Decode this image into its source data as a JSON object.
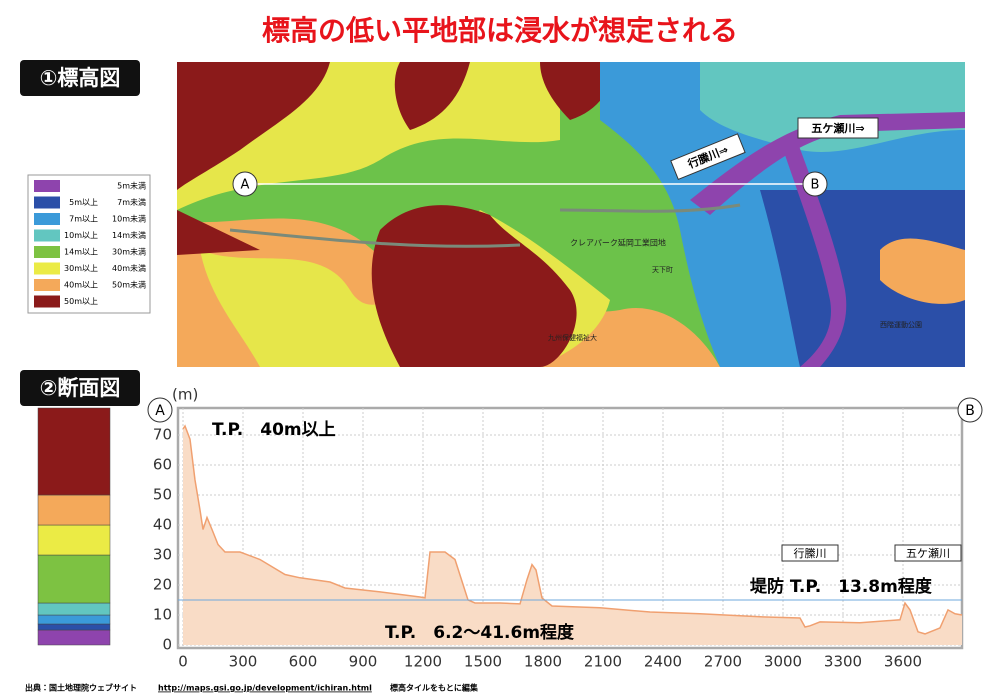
{
  "title": "標高の低い平地部は浸水が想定される",
  "sections": {
    "map": "①標高図",
    "profile": "②断面図"
  },
  "map": {
    "point_a": "A",
    "point_b": "B",
    "river_1": "行縢川⇒",
    "river_2": "五ケ瀬川⇒",
    "places": [
      "クレアパーク延岡工業団地",
      "九州保健福祉大",
      "天下町",
      "西階運動公園"
    ]
  },
  "legend": [
    {
      "color": "#8e44ad",
      "to": "5m未満",
      "max": 5
    },
    {
      "color": "#2b4fa8",
      "from": "5m以上",
      "to": "7m未満",
      "min": 5,
      "max": 7
    },
    {
      "color": "#3b9ad9",
      "from": "7m以上",
      "to": "10m未満",
      "min": 7,
      "max": 10
    },
    {
      "color": "#62c6c0",
      "from": "10m以上",
      "to": "14m未満",
      "min": 10,
      "max": 14
    },
    {
      "color": "#7dc242",
      "from": "14m以上",
      "to": "30m未満",
      "min": 14,
      "max": 30
    },
    {
      "color": "#ebeb45",
      "from": "30m以上",
      "to": "40m未満",
      "min": 30,
      "max": 40
    },
    {
      "color": "#f4a95a",
      "from": "40m以上",
      "to": "50m未満",
      "min": 40,
      "max": 50
    },
    {
      "color": "#8b1a1a",
      "from": "50m以上",
      "min": 50
    }
  ],
  "chart_data": {
    "type": "area",
    "y_unit_label": "(m)",
    "start_label": "A",
    "end_label": "B",
    "color": "#f9dcc6",
    "line_color": "#f0a070",
    "x": [
      0,
      10,
      35,
      60,
      85,
      100,
      120,
      145,
      175,
      210,
      285,
      385,
      510,
      585,
      735,
      810,
      985,
      1185,
      1210,
      1235,
      1310,
      1360,
      1425,
      1460,
      1585,
      1685,
      1720,
      1745,
      1765,
      1795,
      1845,
      2085,
      2335,
      2585,
      2885,
      3085,
      3110,
      3135,
      3185,
      3385,
      3585,
      3610,
      3635,
      3675,
      3710,
      3785,
      3825,
      3860,
      3895
    ],
    "values": [
      72,
      73,
      68.6,
      55,
      45,
      38.5,
      42.5,
      38.5,
      33.5,
      31,
      31,
      28.5,
      23.5,
      22.4,
      21,
      19,
      17.7,
      16,
      15.7,
      31,
      31,
      28.5,
      15,
      14,
      14,
      13.7,
      21.8,
      26.8,
      25,
      15.7,
      13,
      12.4,
      11,
      10.4,
      9.4,
      9,
      6,
      6.4,
      7.7,
      7.4,
      8.4,
      14,
      11.7,
      4.4,
      3.7,
      5.7,
      11.7,
      10.4,
      10
    ],
    "reference_line": 15,
    "xlim": [
      -25,
      3895
    ],
    "ylim": [
      -1,
      79
    ],
    "xticks": [
      0,
      300,
      600,
      900,
      1200,
      1500,
      1800,
      2100,
      2400,
      2700,
      3000,
      3300,
      3600
    ],
    "yticks": [
      0,
      10,
      20,
      30,
      40,
      50,
      60,
      70
    ],
    "grid": true,
    "annotations": [
      "T.P.　40m以上",
      "T.P.　6.2〜41.6m程度",
      "堤防 T.P.　13.8m程度"
    ],
    "river_tags": [
      "行縢川",
      "五ケ瀬川"
    ]
  },
  "footer": {
    "source": "出典：国土地理院ウェブサイト",
    "url": "http://maps.gsi.go.jp/development/ichiran.html",
    "note": "標高タイルをもとに編集"
  }
}
